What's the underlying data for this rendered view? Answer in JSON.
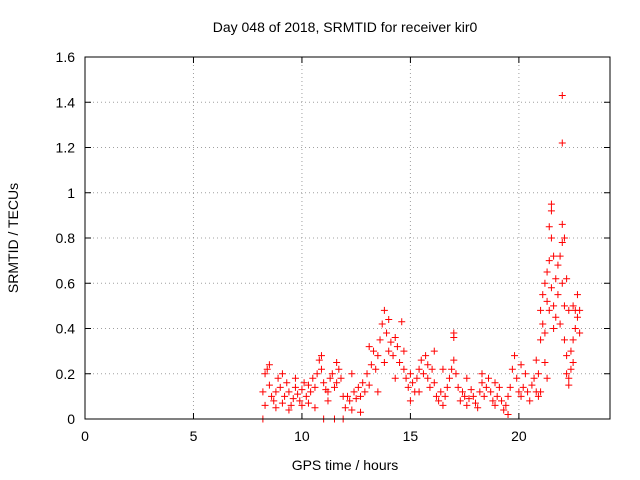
{
  "chart_data": {
    "type": "scatter",
    "title": "Day 048 of 2018, SRMTID for receiver kir0",
    "xlabel": "GPS time / hours",
    "ylabel": "SRMTID / TECUs",
    "xlim": [
      0,
      24.2
    ],
    "ylim": [
      0,
      1.6
    ],
    "xticks": [
      0,
      5,
      10,
      15,
      20
    ],
    "xtick_labels": [
      "0",
      "5",
      "10",
      "15",
      "20"
    ],
    "yticks": [
      0,
      0.2,
      0.4,
      0.6,
      0.8,
      1.0,
      1.2,
      1.4,
      1.6
    ],
    "ytick_labels": [
      "0",
      "0.2",
      "0.4",
      "0.6",
      "0.8",
      "1",
      "1.2",
      "1.4",
      "1.6"
    ],
    "grid": true,
    "marker": "plus",
    "color": "#ff0000",
    "series": [
      {
        "name": "SRMTID",
        "points": [
          [
            8.2,
            0.0
          ],
          [
            11.0,
            0.0
          ],
          [
            11.5,
            0.0
          ],
          [
            11.9,
            0.0
          ],
          [
            8.2,
            0.12
          ],
          [
            8.3,
            0.2
          ],
          [
            8.4,
            0.22
          ],
          [
            8.5,
            0.15
          ],
          [
            8.6,
            0.1
          ],
          [
            8.7,
            0.08
          ],
          [
            8.8,
            0.12
          ],
          [
            8.9,
            0.18
          ],
          [
            9.0,
            0.14
          ],
          [
            9.1,
            0.07
          ],
          [
            9.2,
            0.1
          ],
          [
            9.3,
            0.16
          ],
          [
            9.4,
            0.12
          ],
          [
            9.5,
            0.06
          ],
          [
            9.6,
            0.09
          ],
          [
            9.7,
            0.14
          ],
          [
            9.8,
            0.11
          ],
          [
            9.9,
            0.08
          ],
          [
            10.0,
            0.13
          ],
          [
            10.1,
            0.16
          ],
          [
            10.2,
            0.1
          ],
          [
            10.3,
            0.07
          ],
          [
            10.4,
            0.12
          ],
          [
            10.5,
            0.18
          ],
          [
            10.6,
            0.14
          ],
          [
            10.7,
            0.2
          ],
          [
            10.8,
            0.26
          ],
          [
            10.9,
            0.22
          ],
          [
            11.0,
            0.16
          ],
          [
            11.1,
            0.13
          ],
          [
            11.2,
            0.12
          ],
          [
            11.3,
            0.18
          ],
          [
            11.4,
            0.2
          ],
          [
            11.5,
            0.14
          ],
          [
            11.6,
            0.16
          ],
          [
            11.7,
            0.22
          ],
          [
            11.8,
            0.18
          ],
          [
            11.9,
            0.1
          ],
          [
            8.3,
            0.06
          ],
          [
            8.5,
            0.24
          ],
          [
            8.8,
            0.05
          ],
          [
            9.1,
            0.2
          ],
          [
            9.4,
            0.04
          ],
          [
            9.7,
            0.18
          ],
          [
            10.0,
            0.06
          ],
          [
            10.3,
            0.15
          ],
          [
            10.6,
            0.05
          ],
          [
            10.9,
            0.28
          ],
          [
            11.2,
            0.08
          ],
          [
            11.6,
            0.25
          ],
          [
            12.0,
            0.05
          ],
          [
            12.1,
            0.1
          ],
          [
            12.2,
            0.08
          ],
          [
            12.3,
            0.04
          ],
          [
            12.4,
            0.12
          ],
          [
            12.5,
            0.09
          ],
          [
            12.6,
            0.14
          ],
          [
            12.7,
            0.1
          ],
          [
            12.8,
            0.16
          ],
          [
            12.9,
            0.12
          ],
          [
            13.0,
            0.2
          ],
          [
            13.1,
            0.15
          ],
          [
            13.2,
            0.24
          ],
          [
            13.3,
            0.3
          ],
          [
            13.4,
            0.22
          ],
          [
            13.5,
            0.28
          ],
          [
            13.6,
            0.35
          ],
          [
            13.7,
            0.42
          ],
          [
            13.8,
            0.48
          ],
          [
            13.9,
            0.38
          ],
          [
            14.0,
            0.3
          ],
          [
            14.1,
            0.34
          ],
          [
            14.2,
            0.28
          ],
          [
            14.3,
            0.36
          ],
          [
            14.4,
            0.32
          ],
          [
            14.5,
            0.25
          ],
          [
            14.6,
            0.43
          ],
          [
            14.7,
            0.22
          ],
          [
            14.8,
            0.18
          ],
          [
            14.9,
            0.14
          ],
          [
            15.0,
            0.2
          ],
          [
            15.1,
            0.16
          ],
          [
            15.2,
            0.12
          ],
          [
            15.3,
            0.18
          ],
          [
            15.4,
            0.22
          ],
          [
            15.5,
            0.26
          ],
          [
            15.6,
            0.2
          ],
          [
            15.7,
            0.28
          ],
          [
            15.8,
            0.18
          ],
          [
            15.9,
            0.14
          ],
          [
            16.0,
            0.22
          ],
          [
            16.1,
            0.16
          ],
          [
            12.3,
            0.2
          ],
          [
            12.7,
            0.03
          ],
          [
            13.1,
            0.32
          ],
          [
            13.5,
            0.12
          ],
          [
            13.8,
            0.25
          ],
          [
            14.0,
            0.44
          ],
          [
            14.3,
            0.18
          ],
          [
            14.7,
            0.3
          ],
          [
            15.0,
            0.08
          ],
          [
            15.4,
            0.12
          ],
          [
            15.8,
            0.24
          ],
          [
            16.1,
            0.3
          ],
          [
            16.2,
            0.1
          ],
          [
            16.3,
            0.08
          ],
          [
            16.4,
            0.12
          ],
          [
            16.5,
            0.06
          ],
          [
            16.6,
            0.1
          ],
          [
            16.7,
            0.14
          ],
          [
            16.8,
            0.18
          ],
          [
            16.9,
            0.22
          ],
          [
            17.0,
            0.26
          ],
          [
            17.1,
            0.2
          ],
          [
            17.2,
            0.14
          ],
          [
            17.3,
            0.08
          ],
          [
            17.4,
            0.12
          ],
          [
            17.5,
            0.1
          ],
          [
            17.6,
            0.06
          ],
          [
            17.7,
            0.09
          ],
          [
            17.8,
            0.13
          ],
          [
            17.9,
            0.1
          ],
          [
            18.0,
            0.07
          ],
          [
            18.1,
            0.05
          ],
          [
            18.2,
            0.12
          ],
          [
            18.3,
            0.16
          ],
          [
            18.4,
            0.1
          ],
          [
            18.5,
            0.14
          ],
          [
            18.6,
            0.18
          ],
          [
            18.7,
            0.12
          ],
          [
            18.8,
            0.08
          ],
          [
            18.9,
            0.06
          ],
          [
            19.0,
            0.1
          ],
          [
            19.1,
            0.14
          ],
          [
            19.2,
            0.08
          ],
          [
            19.3,
            0.04
          ],
          [
            19.4,
            0.06
          ],
          [
            19.5,
            0.1
          ],
          [
            19.6,
            0.14
          ],
          [
            19.7,
            0.22
          ],
          [
            19.8,
            0.28
          ],
          [
            19.9,
            0.18
          ],
          [
            20.0,
            0.12
          ],
          [
            20.1,
            0.1
          ],
          [
            20.2,
            0.14
          ],
          [
            20.3,
            0.2
          ],
          [
            20.4,
            0.12
          ],
          [
            20.5,
            0.08
          ],
          [
            20.6,
            0.15
          ],
          [
            20.7,
            0.18
          ],
          [
            20.8,
            0.12
          ],
          [
            20.9,
            0.1
          ],
          [
            17.0,
            0.36
          ],
          [
            17.0,
            0.38
          ],
          [
            16.5,
            0.22
          ],
          [
            17.6,
            0.18
          ],
          [
            18.3,
            0.2
          ],
          [
            18.9,
            0.16
          ],
          [
            19.5,
            0.02
          ],
          [
            20.1,
            0.24
          ],
          [
            20.8,
            0.26
          ],
          [
            20.9,
            0.2
          ],
          [
            21.0,
            0.35
          ],
          [
            21.0,
            0.48
          ],
          [
            21.1,
            0.55
          ],
          [
            21.1,
            0.42
          ],
          [
            21.2,
            0.6
          ],
          [
            21.2,
            0.38
          ],
          [
            21.3,
            0.65
          ],
          [
            21.3,
            0.52
          ],
          [
            21.4,
            0.7
          ],
          [
            21.4,
            0.48
          ],
          [
            21.4,
            0.85
          ],
          [
            21.5,
            0.92
          ],
          [
            21.5,
            0.95
          ],
          [
            21.5,
            0.8
          ],
          [
            21.5,
            0.58
          ],
          [
            21.6,
            0.72
          ],
          [
            21.6,
            0.5
          ],
          [
            21.6,
            0.4
          ],
          [
            21.7,
            0.62
          ],
          [
            21.7,
            0.45
          ],
          [
            21.8,
            0.68
          ],
          [
            21.8,
            0.55
          ],
          [
            21.9,
            0.72
          ],
          [
            21.9,
            0.42
          ],
          [
            22.0,
            0.78
          ],
          [
            22.0,
            0.6
          ],
          [
            22.0,
            1.22
          ],
          [
            22.0,
            1.43
          ],
          [
            22.0,
            0.86
          ],
          [
            22.1,
            0.8
          ],
          [
            22.1,
            0.5
          ],
          [
            22.1,
            0.35
          ],
          [
            22.2,
            0.62
          ],
          [
            22.2,
            0.28
          ],
          [
            22.2,
            0.2
          ],
          [
            22.3,
            0.48
          ],
          [
            22.3,
            0.18
          ],
          [
            22.3,
            0.15
          ],
          [
            22.4,
            0.3
          ],
          [
            22.4,
            0.22
          ],
          [
            22.5,
            0.5
          ],
          [
            22.5,
            0.35
          ],
          [
            22.5,
            0.25
          ],
          [
            22.6,
            0.48
          ],
          [
            22.6,
            0.4
          ],
          [
            22.7,
            0.45
          ],
          [
            22.7,
            0.55
          ],
          [
            22.8,
            0.38
          ],
          [
            22.8,
            0.48
          ],
          [
            21.0,
            0.12
          ],
          [
            21.2,
            0.25
          ],
          [
            21.3,
            0.18
          ]
        ]
      }
    ]
  }
}
